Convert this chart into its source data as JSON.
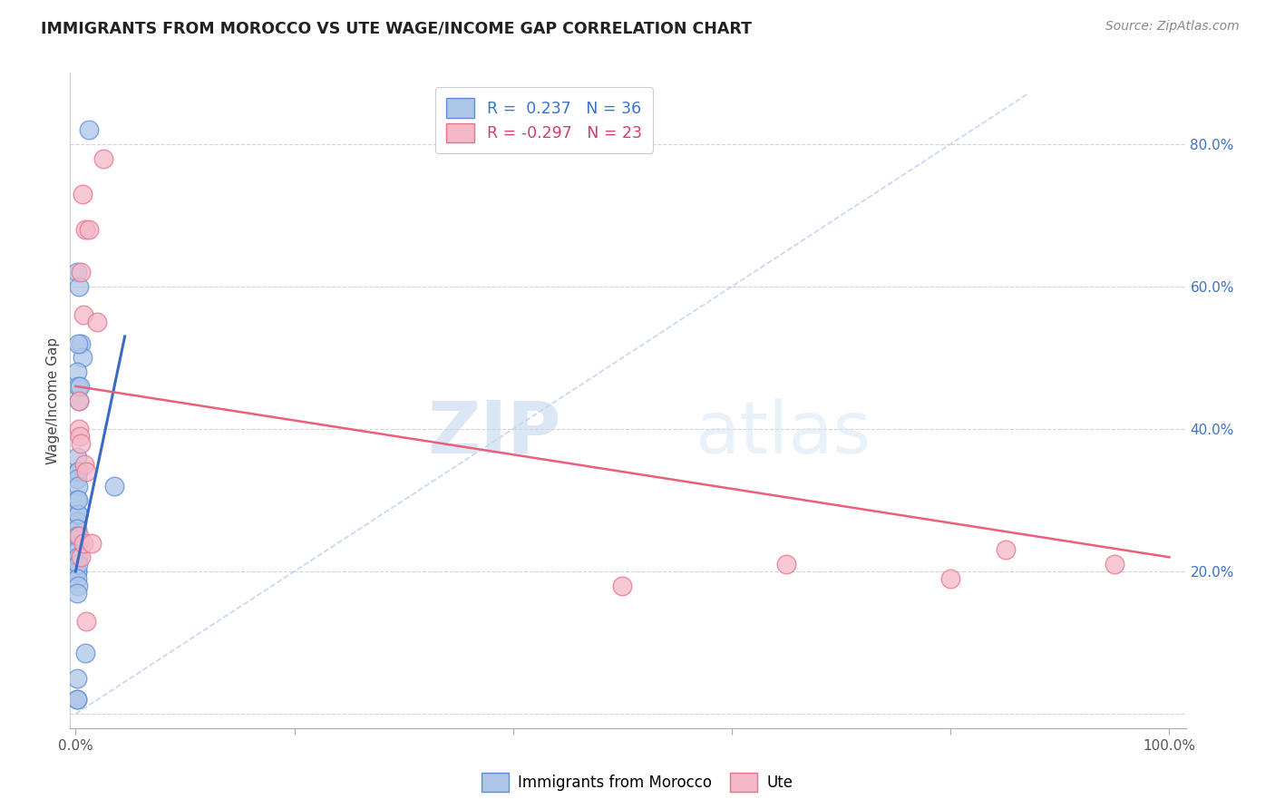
{
  "title": "IMMIGRANTS FROM MOROCCO VS UTE WAGE/INCOME GAP CORRELATION CHART",
  "source": "Source: ZipAtlas.com",
  "ylabel": "Wage/Income Gap",
  "legend_label1": "Immigrants from Morocco",
  "legend_label2": "Ute",
  "r1": 0.237,
  "n1": 36,
  "r2": -0.297,
  "n2": 23,
  "color_blue_fill": "#aec6e8",
  "color_pink_fill": "#f4b8c8",
  "color_blue_edge": "#5b8dd9",
  "color_pink_edge": "#e8708a",
  "color_blue_line": "#3a6bc4",
  "color_pink_line": "#e8607a",
  "color_blue_text": "#3a72c8",
  "color_pink_text": "#d04060",
  "watermark1": "ZIP",
  "watermark2": "atlas",
  "blue_scatter_x": [
    1.2,
    0.15,
    0.3,
    0.5,
    0.6,
    0.15,
    0.2,
    0.25,
    0.3,
    0.35,
    0.15,
    0.2,
    0.25,
    0.15,
    0.2,
    0.15,
    0.2,
    0.15,
    0.2,
    0.25,
    0.15,
    0.2,
    0.15,
    0.2,
    0.25,
    0.15,
    0.15,
    0.2,
    0.15,
    0.2,
    0.15,
    3.5,
    0.9,
    0.15,
    0.15,
    0.15
  ],
  "blue_scatter_y": [
    82.0,
    62.0,
    60.0,
    52.0,
    50.0,
    48.0,
    46.0,
    52.0,
    44.0,
    46.0,
    36.0,
    34.0,
    34.0,
    33.0,
    32.0,
    30.0,
    28.0,
    27.0,
    28.0,
    30.0,
    26.0,
    24.0,
    25.0,
    23.0,
    22.0,
    20.0,
    20.0,
    21.0,
    19.0,
    18.0,
    17.0,
    32.0,
    8.5,
    5.0,
    2.0,
    2.0
  ],
  "pink_scatter_x": [
    2.5,
    0.6,
    0.9,
    1.2,
    0.5,
    0.7,
    0.3,
    0.3,
    0.4,
    0.5,
    0.8,
    1.0,
    0.3,
    0.5,
    1.0,
    65.0,
    80.0,
    95.0,
    50.0,
    85.0,
    2.0,
    0.7,
    1.5
  ],
  "pink_scatter_y": [
    78.0,
    73.0,
    68.0,
    68.0,
    62.0,
    56.0,
    44.0,
    40.0,
    39.0,
    38.0,
    35.0,
    34.0,
    25.0,
    22.0,
    13.0,
    21.0,
    19.0,
    21.0,
    18.0,
    23.0,
    55.0,
    24.0,
    24.0
  ],
  "blue_line_x": [
    0.0,
    4.5
  ],
  "blue_line_y": [
    20.0,
    53.0
  ],
  "pink_line_x": [
    0.0,
    100.0
  ],
  "pink_line_y": [
    46.0,
    22.0
  ],
  "diag_x1": 0.0,
  "diag_y1": 0.0,
  "diag_x2": 87.0,
  "diag_y2": 87.0,
  "xlim_min": -0.5,
  "xlim_max": 101.5,
  "ylim_min": -2.0,
  "ylim_max": 90.0
}
